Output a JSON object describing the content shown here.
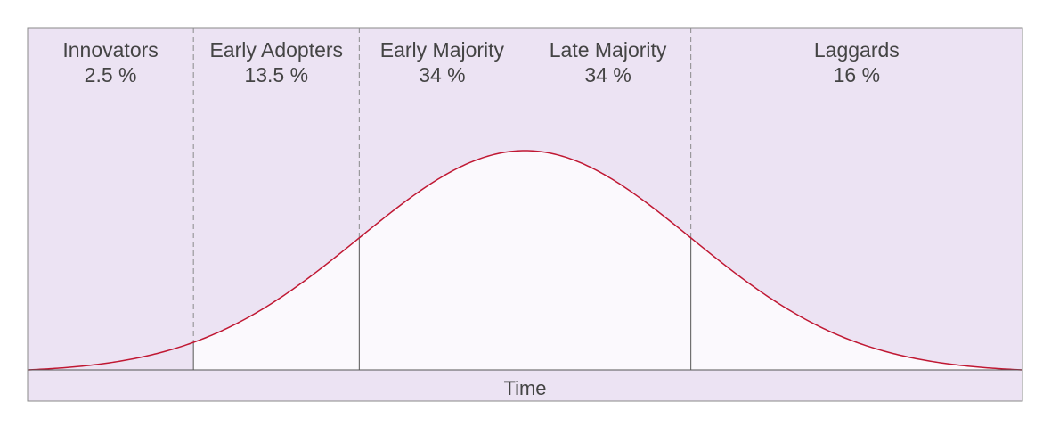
{
  "chart_data": {
    "type": "area",
    "title": "",
    "xlabel": "Time",
    "ylabel": "",
    "grid": false,
    "legend": "none",
    "segments": [
      {
        "name": "Innovators",
        "percent_label": "2.5 %",
        "share": 2.5
      },
      {
        "name": "Early Adopters",
        "percent_label": "13.5 %",
        "share": 13.5
      },
      {
        "name": "Early Majority",
        "percent_label": "34 %",
        "share": 34
      },
      {
        "name": "Late Majority",
        "percent_label": "34 %",
        "share": 34
      },
      {
        "name": "Laggards",
        "percent_label": "16 %",
        "share": 16
      }
    ],
    "x_range_sd": [
      -3,
      3
    ],
    "boundaries_sd": [
      -2,
      -1,
      0,
      1
    ],
    "curve": "normal-distribution"
  },
  "colors": {
    "background": "#ece3f3",
    "curve_fill": "#fbf9fd",
    "curve_line": "#c01833",
    "divider": "#555555",
    "frame": "#8a8a8a",
    "text": "#444444"
  }
}
